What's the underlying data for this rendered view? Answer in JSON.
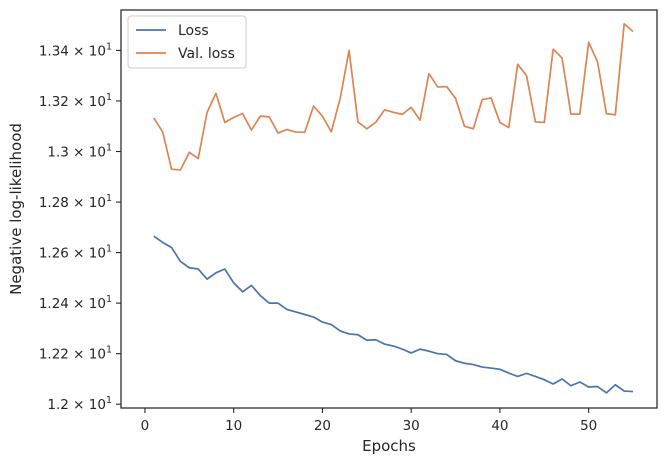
{
  "chart_data": {
    "type": "line",
    "xlabel": "Epochs",
    "ylabel": "Negative log-likelihood",
    "xlim": [
      -2.7,
      57.7
    ],
    "ylim": [
      11.985,
      13.56
    ],
    "xticks": [
      0,
      10,
      20,
      30,
      40,
      50
    ],
    "yticks": [
      {
        "value": 12.0,
        "label": "1.2 × 10",
        "exp": "1"
      },
      {
        "value": 12.2,
        "label": "1.22 × 10",
        "exp": "1"
      },
      {
        "value": 12.4,
        "label": "1.24 × 10",
        "exp": "1"
      },
      {
        "value": 12.6,
        "label": "1.26 × 10",
        "exp": "1"
      },
      {
        "value": 12.8,
        "label": "1.28 × 10",
        "exp": "1"
      },
      {
        "value": 13.0,
        "label": "1.3 × 10",
        "exp": "1"
      },
      {
        "value": 13.2,
        "label": "1.32 × 10",
        "exp": "1"
      },
      {
        "value": 13.4,
        "label": "1.34 × 10",
        "exp": "1"
      }
    ],
    "grid": false,
    "legend_position": "top-left",
    "x": [
      1,
      2,
      3,
      4,
      5,
      6,
      7,
      8,
      9,
      10,
      11,
      12,
      13,
      14,
      15,
      16,
      17,
      18,
      19,
      20,
      21,
      22,
      23,
      24,
      25,
      26,
      27,
      28,
      29,
      30,
      31,
      32,
      33,
      34,
      35,
      36,
      37,
      38,
      39,
      40,
      41,
      42,
      43,
      44,
      45,
      46,
      47,
      48,
      49,
      50,
      51,
      52,
      53,
      54,
      55
    ],
    "series": [
      {
        "name": "Loss",
        "color": "#4c72b0",
        "values": [
          12.665,
          12.64,
          12.62,
          12.565,
          12.54,
          12.535,
          12.495,
          12.52,
          12.535,
          12.48,
          12.445,
          12.47,
          12.43,
          12.4,
          12.4,
          12.375,
          12.365,
          12.355,
          12.345,
          12.325,
          12.315,
          12.29,
          12.278,
          12.275,
          12.253,
          12.255,
          12.238,
          12.23,
          12.218,
          12.203,
          12.218,
          12.21,
          12.2,
          12.197,
          12.172,
          12.162,
          12.157,
          12.147,
          12.143,
          12.138,
          12.123,
          12.11,
          12.122,
          12.11,
          12.097,
          12.08,
          12.1,
          12.073,
          12.088,
          12.068,
          12.07,
          12.045,
          12.077,
          12.052,
          12.05
        ]
      },
      {
        "name": "Val. loss",
        "color": "#dd8452",
        "values": [
          13.133,
          13.077,
          12.93,
          12.927,
          12.997,
          12.972,
          13.155,
          13.23,
          13.115,
          13.135,
          13.15,
          13.085,
          13.14,
          13.137,
          13.073,
          13.087,
          13.077,
          13.076,
          13.18,
          13.14,
          13.078,
          13.21,
          13.4,
          13.117,
          13.09,
          13.115,
          13.165,
          13.155,
          13.147,
          13.175,
          13.124,
          13.308,
          13.255,
          13.257,
          13.21,
          13.1,
          13.09,
          13.205,
          13.212,
          13.115,
          13.095,
          13.345,
          13.3,
          13.117,
          13.115,
          13.405,
          13.37,
          13.148,
          13.148,
          13.432,
          13.355,
          13.15,
          13.145,
          13.505,
          13.475
        ]
      }
    ]
  }
}
